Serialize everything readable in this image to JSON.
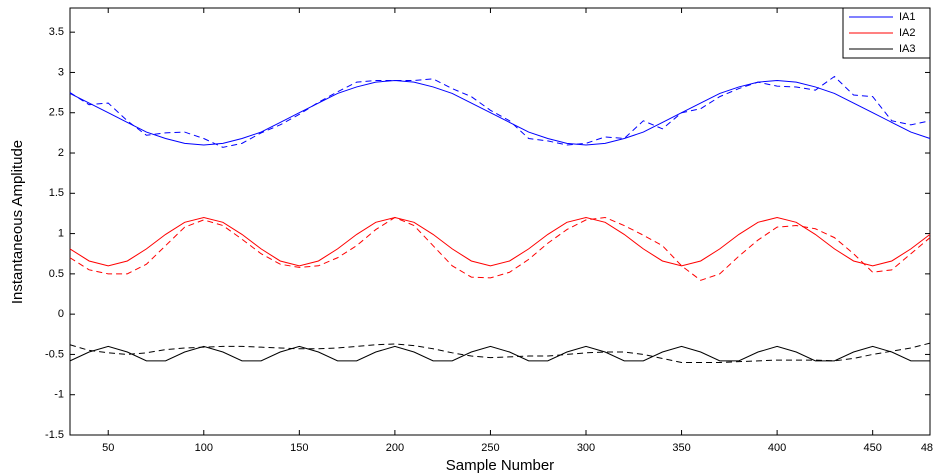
{
  "chart_data": {
    "type": "line",
    "x_label": "Sample Number",
    "y_label": "Instantaneous Amplitude",
    "x": [
      30,
      40,
      50,
      60,
      70,
      80,
      90,
      100,
      110,
      120,
      130,
      140,
      150,
      160,
      170,
      180,
      190,
      200,
      210,
      220,
      230,
      240,
      250,
      260,
      270,
      280,
      290,
      300,
      310,
      320,
      330,
      340,
      350,
      360,
      370,
      380,
      390,
      400,
      410,
      420,
      430,
      440,
      450,
      460,
      470,
      480
    ],
    "xlim": [
      30,
      480
    ],
    "xticks": [
      50,
      100,
      150,
      200,
      250,
      300,
      350,
      400,
      450,
      480
    ],
    "ylim": [
      -1.5,
      3.8
    ],
    "yticks": [
      -1.5,
      -1,
      -0.5,
      0,
      0.5,
      1,
      1.5,
      2,
      2.5,
      3,
      3.5
    ],
    "legend": "upper right",
    "series": [
      {
        "name": "IA1",
        "color": "#0000ff",
        "dash": false,
        "values": [
          2.74,
          2.62,
          2.5,
          2.38,
          2.26,
          2.18,
          2.12,
          2.1,
          2.12,
          2.18,
          2.26,
          2.38,
          2.5,
          2.62,
          2.74,
          2.82,
          2.88,
          2.9,
          2.88,
          2.82,
          2.74,
          2.62,
          2.5,
          2.38,
          2.26,
          2.18,
          2.12,
          2.1,
          2.12,
          2.18,
          2.26,
          2.38,
          2.5,
          2.62,
          2.74,
          2.82,
          2.88,
          2.9,
          2.88,
          2.82,
          2.74,
          2.62,
          2.5,
          2.38,
          2.26,
          2.18
        ]
      },
      {
        "name": "IA2",
        "color": "#ff0000",
        "dash": false,
        "values": [
          0.81,
          0.66,
          0.6,
          0.66,
          0.81,
          0.99,
          1.14,
          1.2,
          1.14,
          0.99,
          0.81,
          0.66,
          0.6,
          0.66,
          0.81,
          0.99,
          1.14,
          1.2,
          1.14,
          0.99,
          0.81,
          0.66,
          0.6,
          0.66,
          0.81,
          0.99,
          1.14,
          1.2,
          1.14,
          0.99,
          0.81,
          0.66,
          0.6,
          0.66,
          0.81,
          0.99,
          1.14,
          1.2,
          1.14,
          0.99,
          0.81,
          0.66,
          0.6,
          0.66,
          0.81,
          0.99
        ]
      },
      {
        "name": "IA3",
        "color": "#000000",
        "dash": false,
        "values": [
          -0.58,
          -0.47,
          -0.4,
          -0.47,
          -0.58,
          -0.58,
          -0.47,
          -0.4,
          -0.47,
          -0.58,
          -0.58,
          -0.47,
          -0.4,
          -0.47,
          -0.58,
          -0.58,
          -0.47,
          -0.4,
          -0.47,
          -0.58,
          -0.58,
          -0.47,
          -0.4,
          -0.47,
          -0.58,
          -0.58,
          -0.47,
          -0.4,
          -0.47,
          -0.58,
          -0.58,
          -0.47,
          -0.4,
          -0.47,
          -0.58,
          -0.58,
          -0.47,
          -0.4,
          -0.47,
          -0.58,
          -0.58,
          -0.47,
          -0.4,
          -0.47,
          -0.58,
          -0.58
        ]
      },
      {
        "color": "#0000ff",
        "dash": true,
        "values": [
          2.75,
          2.6,
          2.62,
          2.4,
          2.22,
          2.25,
          2.26,
          2.18,
          2.07,
          2.12,
          2.25,
          2.35,
          2.48,
          2.63,
          2.76,
          2.88,
          2.9,
          2.9,
          2.9,
          2.92,
          2.8,
          2.7,
          2.53,
          2.4,
          2.18,
          2.15,
          2.1,
          2.12,
          2.2,
          2.18,
          2.4,
          2.3,
          2.5,
          2.55,
          2.7,
          2.8,
          2.88,
          2.83,
          2.82,
          2.78,
          2.95,
          2.72,
          2.7,
          2.4,
          2.35,
          2.4
        ]
      },
      {
        "color": "#ff0000",
        "dash": true,
        "values": [
          0.7,
          0.55,
          0.5,
          0.5,
          0.62,
          0.85,
          1.08,
          1.17,
          1.1,
          0.93,
          0.75,
          0.62,
          0.58,
          0.6,
          0.7,
          0.85,
          1.05,
          1.2,
          1.1,
          0.85,
          0.6,
          0.46,
          0.45,
          0.52,
          0.68,
          0.88,
          1.05,
          1.17,
          1.2,
          1.1,
          0.98,
          0.85,
          0.6,
          0.42,
          0.5,
          0.72,
          0.92,
          1.08,
          1.1,
          1.06,
          0.95,
          0.75,
          0.52,
          0.55,
          0.75,
          0.95
        ]
      },
      {
        "color": "#000000",
        "dash": true,
        "values": [
          -0.38,
          -0.45,
          -0.48,
          -0.5,
          -0.48,
          -0.44,
          -0.42,
          -0.41,
          -0.4,
          -0.4,
          -0.41,
          -0.42,
          -0.43,
          -0.43,
          -0.42,
          -0.4,
          -0.38,
          -0.37,
          -0.39,
          -0.43,
          -0.48,
          -0.52,
          -0.54,
          -0.53,
          -0.52,
          -0.52,
          -0.5,
          -0.48,
          -0.47,
          -0.47,
          -0.5,
          -0.55,
          -0.6,
          -0.6,
          -0.6,
          -0.59,
          -0.58,
          -0.57,
          -0.57,
          -0.57,
          -0.58,
          -0.55,
          -0.5,
          -0.46,
          -0.42,
          -0.36
        ]
      }
    ]
  }
}
